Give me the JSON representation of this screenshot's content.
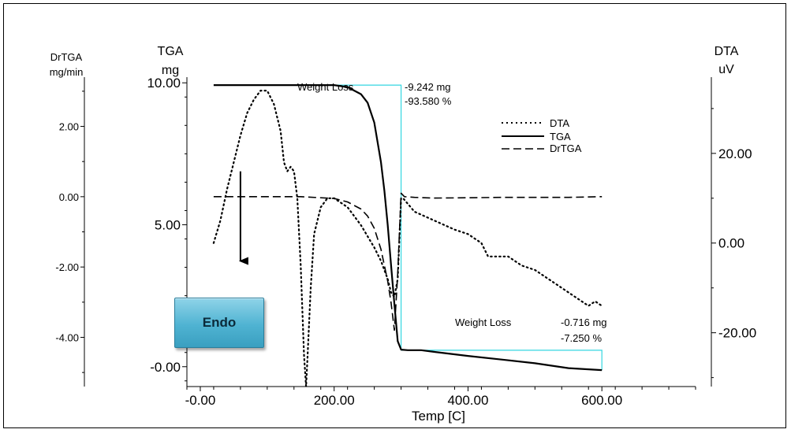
{
  "chart_data": {
    "type": "line",
    "x_axis": {
      "label": "Temp [C]",
      "range": [
        -20,
        740
      ],
      "ticks": [
        0,
        200,
        400,
        600
      ],
      "tick_labels": [
        "-0.00",
        "200.00",
        "400.00",
        "600.00"
      ]
    },
    "axes": {
      "tga": {
        "title": "TGA",
        "unit": "mg",
        "range": [
          -0.7,
          10.2
        ],
        "ticks": [
          0,
          5,
          10
        ],
        "tick_labels": [
          "-0.00",
          "5.00",
          "10.00"
        ]
      },
      "drtga": {
        "title": "DrTGA",
        "unit": "mg/min",
        "range": [
          -5.4,
          3.4
        ],
        "ticks": [
          -4,
          -2,
          0,
          2
        ],
        "tick_labels": [
          "-4.00",
          "-2.00",
          "0.00",
          "2.00"
        ]
      },
      "dta": {
        "title": "DTA",
        "unit": "uV",
        "range": [
          -32,
          37
        ],
        "ticks": [
          -20,
          0,
          20
        ],
        "tick_labels": [
          "-20.00",
          "0.00",
          "20.00"
        ]
      }
    },
    "legend": {
      "placement": "top-right",
      "entries": [
        "DTA",
        "TGA",
        "DrTGA"
      ]
    },
    "series": [
      {
        "name": "TGA",
        "axis": "tga",
        "style": "solid",
        "x": [
          20,
          100,
          200,
          220,
          240,
          250,
          260,
          270,
          275,
          280,
          285,
          290,
          295,
          300,
          310,
          320,
          330,
          350,
          400,
          450,
          500,
          550,
          600
        ],
        "y": [
          9.92,
          9.92,
          9.92,
          9.85,
          9.6,
          9.3,
          8.6,
          7.2,
          6.2,
          5.0,
          3.6,
          2.2,
          0.9,
          0.6,
          0.58,
          0.58,
          0.58,
          0.52,
          0.38,
          0.25,
          0.12,
          -0.05,
          -0.12
        ]
      },
      {
        "name": "DTA",
        "axis": "dta",
        "style": "dotted",
        "x": [
          20,
          30,
          40,
          50,
          60,
          70,
          80,
          90,
          100,
          110,
          120,
          125,
          130,
          135,
          140,
          145,
          150,
          155,
          158,
          160,
          165,
          170,
          180,
          190,
          200,
          220,
          240,
          260,
          270,
          280,
          285,
          290,
          295,
          300,
          303,
          320,
          350,
          380,
          400,
          420,
          430,
          440,
          450,
          460,
          480,
          500,
          520,
          540,
          560,
          580,
          590,
          600
        ],
        "y": [
          0,
          5,
          12,
          18,
          24,
          29,
          32,
          34,
          34,
          31,
          25,
          18,
          16,
          17,
          16,
          10,
          -5,
          -25,
          -32,
          -26,
          -10,
          2,
          8,
          10,
          10,
          8,
          4,
          -1,
          -4,
          -8,
          -11,
          -12,
          -8,
          10,
          10,
          7,
          5,
          3,
          2,
          0,
          -3,
          -3,
          -3,
          -3,
          -5,
          -6,
          -8,
          -10,
          -12,
          -14,
          -13,
          -14
        ]
      },
      {
        "name": "DrTGA",
        "axis": "drtga",
        "style": "dashed",
        "x": [
          20,
          100,
          150,
          200,
          220,
          240,
          250,
          260,
          270,
          280,
          285,
          290,
          295,
          300,
          305,
          320,
          350,
          400,
          450,
          500,
          550,
          600
        ],
        "y": [
          0.0,
          0.0,
          0.0,
          -0.05,
          -0.15,
          -0.35,
          -0.55,
          -0.9,
          -1.5,
          -2.4,
          -3.0,
          -3.8,
          -2.2,
          0.1,
          0.0,
          -0.02,
          -0.04,
          -0.03,
          -0.02,
          -0.02,
          -0.02,
          0.0
        ]
      }
    ],
    "annotations": [
      {
        "kind": "weight-loss",
        "label": "Weight Loss",
        "value_mg": "-9.242 mg",
        "value_pct": "-93.580 %",
        "x_start": 200,
        "x_end": 300,
        "y_top": 9.92,
        "y_bottom": 0.58
      },
      {
        "kind": "weight-loss",
        "label": "Weight Loss",
        "value_mg": "-0.716 mg",
        "value_pct": "-7.250 %",
        "x_start": 300,
        "x_end": 600,
        "y_top": 0.58,
        "y_bottom": -0.12
      }
    ],
    "badge": "Endo",
    "arrow": {
      "x": 60,
      "dta_from": 16,
      "dta_to": -4
    },
    "annotation_color": "#33d6e0"
  }
}
